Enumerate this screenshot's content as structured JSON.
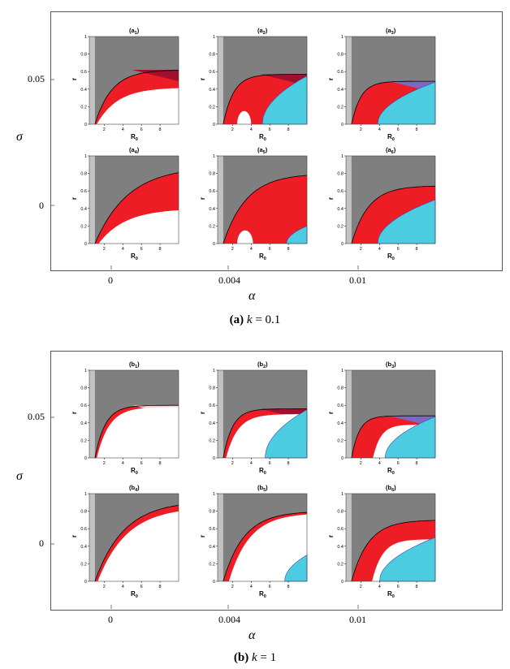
{
  "figures": [
    {
      "id": "a",
      "caption_label": "(a)",
      "caption_var": "k",
      "caption_value": "= 0.1",
      "y_axis_label": "σ",
      "x_axis_label": "α",
      "y_ticks": [
        "0.05",
        "0"
      ],
      "x_ticks": [
        "0",
        "0.004",
        "0.01"
      ],
      "panels": [
        {
          "sub": "1",
          "letter": "a"
        },
        {
          "sub": "2",
          "letter": "a"
        },
        {
          "sub": "3",
          "letter": "a"
        },
        {
          "sub": "4",
          "letter": "a"
        },
        {
          "sub": "5",
          "letter": "a"
        },
        {
          "sub": "6",
          "letter": "a"
        }
      ]
    },
    {
      "id": "b",
      "caption_label": "(b)",
      "caption_var": "k",
      "caption_value": "= 1",
      "y_axis_label": "σ",
      "x_axis_label": "α",
      "y_ticks": [
        "0.05",
        "0"
      ],
      "x_ticks": [
        "0",
        "0.004",
        "0.01"
      ],
      "panels": [
        {
          "sub": "1",
          "letter": "b"
        },
        {
          "sub": "2",
          "letter": "b"
        },
        {
          "sub": "3",
          "letter": "b"
        },
        {
          "sub": "4",
          "letter": "b"
        },
        {
          "sub": "5",
          "letter": "b"
        },
        {
          "sub": "6",
          "letter": "b"
        }
      ]
    }
  ],
  "panel_axes": {
    "xlabel": "R",
    "xlabel_sub": "0",
    "ylabel": "r",
    "x_ticks": [
      "2",
      "4",
      "6",
      "8"
    ],
    "y_ticks": [
      "0",
      "0.2",
      "0.4",
      "0.6",
      "0.8",
      "1"
    ]
  },
  "colors": {
    "gray_dark": "#7f7f7f",
    "gray_light": "#c2c2c2",
    "red": "#ee1c24",
    "cyan": "#4ccce0",
    "dark_red": "#a0102e",
    "purple": "#7b68c0",
    "pink": "#f4d0d0",
    "white": "#ffffff"
  }
}
